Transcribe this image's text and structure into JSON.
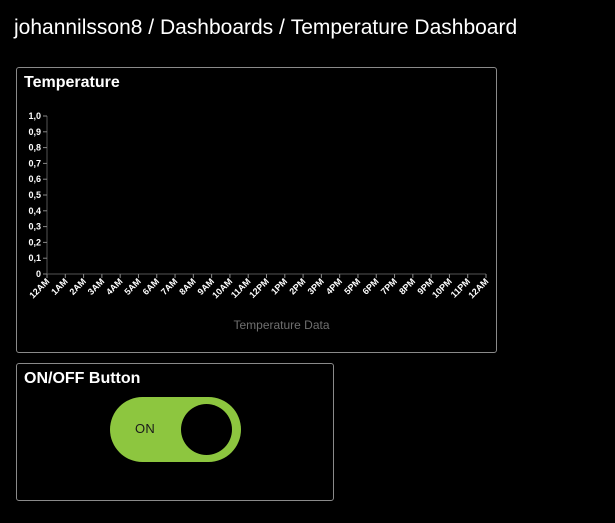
{
  "breadcrumb": {
    "user": "johannilsson8",
    "sep1": " / ",
    "section": "Dashboards",
    "sep2": " / ",
    "current": "Temperature Dashboard"
  },
  "temperature_panel": {
    "title": "Temperature"
  },
  "switch_panel": {
    "title": "ON/OFF Button",
    "state_label": "ON",
    "state": "on",
    "track_color": "#8dc63f"
  },
  "chart_data": {
    "type": "line",
    "title": "Temperature",
    "xlabel": "Temperature Data",
    "ylabel": "",
    "ylim": [
      0,
      1
    ],
    "y_ticks": [
      "0",
      "0,1",
      "0,2",
      "0,3",
      "0,4",
      "0,5",
      "0,6",
      "0,7",
      "0,8",
      "0,9",
      "1,0"
    ],
    "x_ticks": [
      "12AM",
      "1AM",
      "2AM",
      "3AM",
      "4AM",
      "5AM",
      "6AM",
      "7AM",
      "8AM",
      "9AM",
      "10AM",
      "11AM",
      "12PM",
      "1PM",
      "2PM",
      "3PM",
      "4PM",
      "5PM",
      "6PM",
      "7PM",
      "8PM",
      "9PM",
      "10PM",
      "11PM",
      "12AM"
    ],
    "series": [],
    "grid": false
  }
}
